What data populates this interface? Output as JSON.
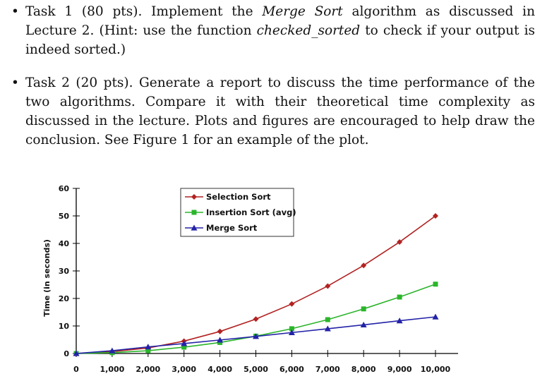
{
  "tasks": [
    {
      "bullet": "•",
      "heading": "Task 1 (80 pts).",
      "text_a": " Implement the ",
      "em_a": "Merge Sort",
      "text_b": " algorithm as discussed in Lecture 2. (Hint: use the function ",
      "em_b": "checked_sorted",
      "text_c": " to check if your output is indeed sorted.)"
    },
    {
      "bullet": "•",
      "heading": "Task 2 (20 pts).",
      "text_a": " Generate a report to discuss the time performance of the two algorithms. Compare it with their theoretical time complexity as discussed in the lecture. Plots and figures are encouraged to help draw the conclusion. See Figure 1 for an example of the plot."
    }
  ],
  "chart_data": {
    "type": "line",
    "ylabel": "Time (in seconds)",
    "xlabel": "",
    "x": [
      0,
      1000,
      2000,
      3000,
      4000,
      5000,
      6000,
      7000,
      8000,
      9000,
      10000
    ],
    "x_tick_labels": [
      "0",
      "1,000",
      "2,000",
      "3,000",
      "4,000",
      "5,000",
      "6,000",
      "7,000",
      "8,000",
      "9,000",
      "10,000"
    ],
    "y_ticks": [
      0,
      10,
      20,
      30,
      40,
      50,
      60
    ],
    "y_tick_labels": [
      "0",
      "10",
      "20",
      "30",
      "40",
      "50",
      "60"
    ],
    "xlim": [
      0,
      10000
    ],
    "ylim": [
      0,
      60
    ],
    "grid": false,
    "legend_position": "top-center",
    "series": [
      {
        "name": "Selection Sort",
        "color": "#b22222",
        "marker": "diamond",
        "values": [
          0,
          0.7,
          2.0,
          4.5,
          8.0,
          12.5,
          18.0,
          24.5,
          32.0,
          40.5,
          50.0
        ]
      },
      {
        "name": "Insertion Sort (avg)",
        "color": "#2bb52b",
        "marker": "square",
        "values": [
          0,
          0.3,
          1.0,
          2.3,
          4.0,
          6.3,
          9.0,
          12.3,
          16.2,
          20.5,
          25.2
        ]
      },
      {
        "name": "Merge Sort",
        "color": "#2323a8",
        "marker": "triangle",
        "values": [
          0,
          1.0,
          2.4,
          3.6,
          4.9,
          6.2,
          7.6,
          9.0,
          10.4,
          11.9,
          13.3
        ]
      }
    ]
  }
}
